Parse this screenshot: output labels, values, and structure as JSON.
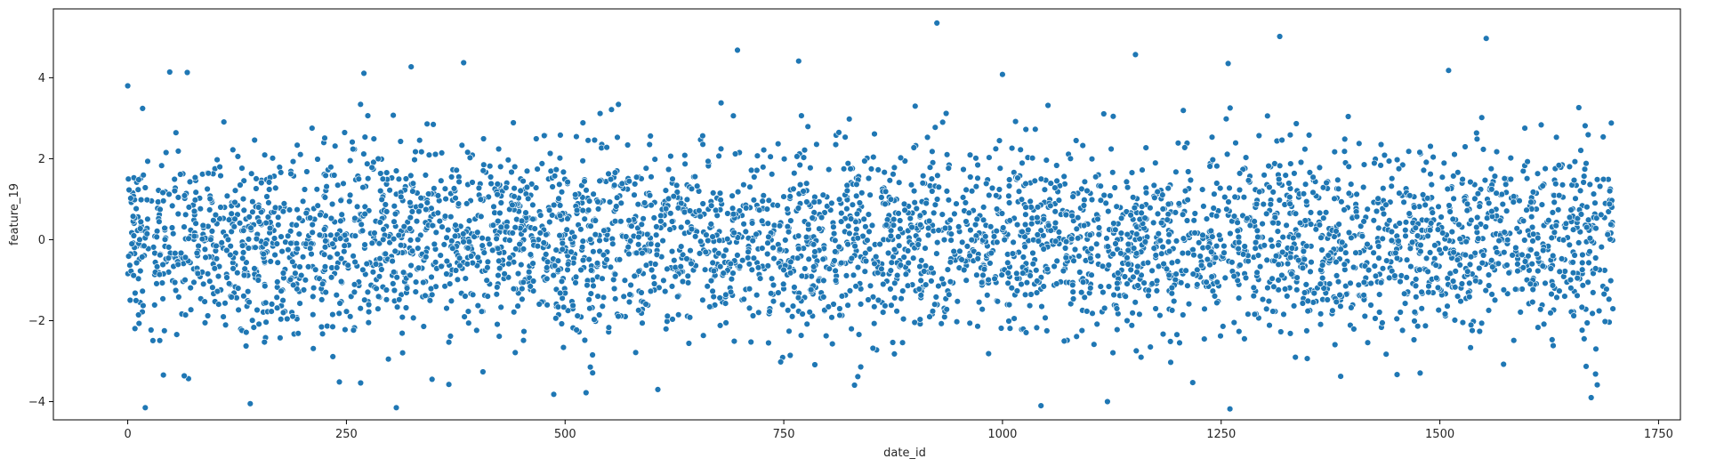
{
  "chart_data": {
    "type": "scatter",
    "title": "",
    "xlabel": "date_id",
    "ylabel": "feature_19",
    "xlim": [
      -85,
      1775
    ],
    "ylim": [
      -4.45,
      5.7
    ],
    "x_ticks": [
      0,
      250,
      500,
      750,
      1000,
      1250,
      1500,
      1750
    ],
    "y_ticks": [
      -4,
      -2,
      0,
      2,
      4
    ],
    "grid": false,
    "legend": "none",
    "point_color": "#1f77b4",
    "point_edge_color": "#ffffff",
    "x_range": [
      0,
      1698
    ],
    "density": "dense band of points spanning date_id 0-1698, concentrated between about -2.6 and 2.8",
    "outliers": [
      {
        "x": 925,
        "y": 5.35
      },
      {
        "x": 1317,
        "y": 5.02
      },
      {
        "x": 1553,
        "y": 4.97
      },
      {
        "x": 697,
        "y": 4.68
      },
      {
        "x": 1152,
        "y": 4.57
      },
      {
        "x": 767,
        "y": 4.41
      },
      {
        "x": 384,
        "y": 4.37
      },
      {
        "x": 1258,
        "y": 4.35
      },
      {
        "x": 324,
        "y": 4.27
      },
      {
        "x": 48,
        "y": 4.14
      },
      {
        "x": 68,
        "y": 4.13
      },
      {
        "x": 270,
        "y": 4.11
      },
      {
        "x": 1000,
        "y": 4.08
      },
      {
        "x": 1510,
        "y": 4.18
      },
      {
        "x": 0,
        "y": 3.8
      },
      {
        "x": 20,
        "y": -4.15
      },
      {
        "x": 307,
        "y": -4.15
      },
      {
        "x": 1260,
        "y": -4.18
      },
      {
        "x": 140,
        "y": -4.05
      },
      {
        "x": 1044,
        "y": -4.1
      },
      {
        "x": 1120,
        "y": -4.0
      },
      {
        "x": 1673,
        "y": -3.9
      },
      {
        "x": 487,
        "y": -3.82
      },
      {
        "x": 524,
        "y": -3.78
      },
      {
        "x": 606,
        "y": -3.7
      }
    ]
  }
}
